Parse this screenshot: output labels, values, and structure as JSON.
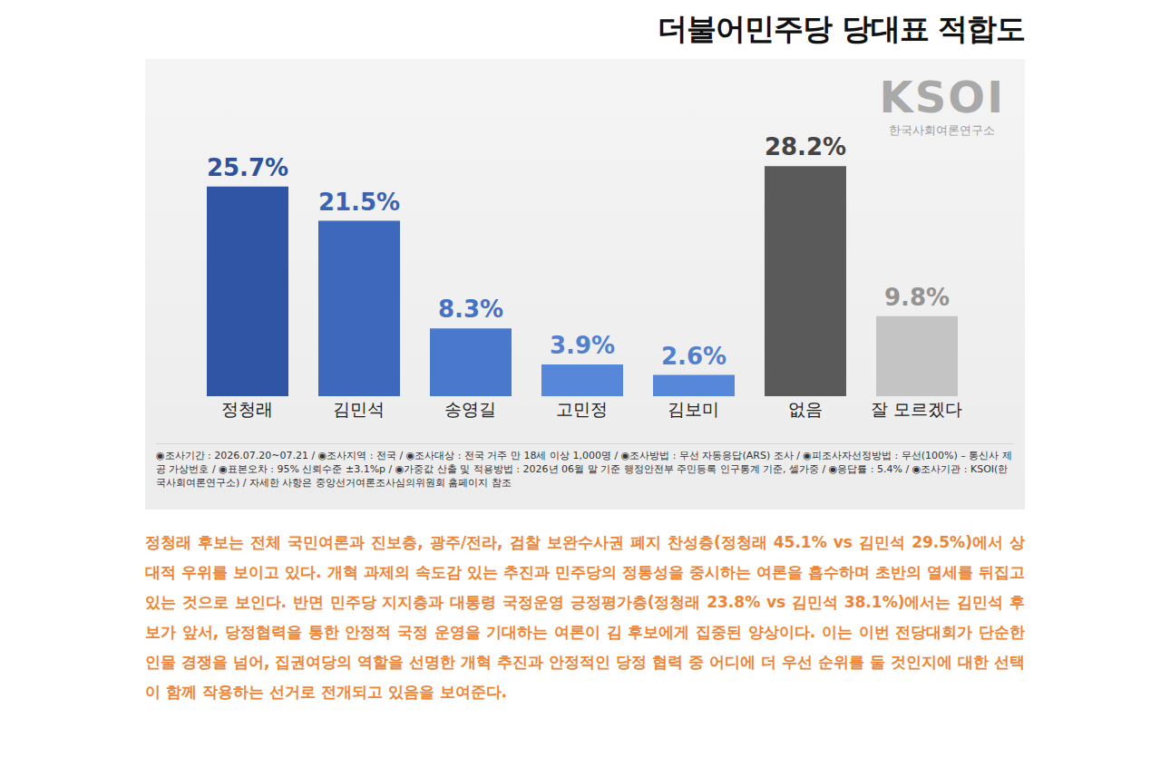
{
  "chart_data": {
    "type": "bar",
    "title": "더불어민주당 당대표 적합도",
    "logo": "KSOI",
    "logo_subtitle": "한국사회여론연구소",
    "categories": [
      "정청래",
      "김민석",
      "송영길",
      "고민정",
      "김보미",
      "없음",
      "잘 모르겠다"
    ],
    "values": [
      25.7,
      21.5,
      8.3,
      3.9,
      2.6,
      28.2,
      9.8
    ],
    "value_labels": [
      "25.7%",
      "21.5%",
      "8.3%",
      "3.9%",
      "2.6%",
      "28.2%",
      "9.8%"
    ],
    "colors": [
      "#2f55a4",
      "#3d68bb",
      "#4a78cc",
      "#5787d9",
      "#5787d9",
      "#5a5a5a",
      "#c4c4c4"
    ],
    "ylim": [
      0,
      30
    ],
    "data_labels": true,
    "tick_labels": "x",
    "grid": false,
    "footnote": "◉조사기간 : 2026.07.20~07.21 / ◉조사지역 : 전국 / ◉조사대상 : 전국 거주 만 18세 이상 1,000명 / ◉조사방법 : 무선 자동응답(ARS) 조사 / ◉피조사자선정방법 : 무선(100%) – 통신사 제공 가상번호 / ◉표본오차 : 95% 신뢰수준 ±3.1%p / ◉가중값 산출 및 적용방법 : 2026년 06월 말 기준 행정안전부 주민등록 인구통계 기준, 셀가중 / ◉응답률 : 5.4% / ◉조사기관 : KSOI(한국사회여론연구소) / 자세한 사항은 중앙선거여론조사심의위원회 홈페이지 참조",
    "commentary": "정청래 후보는 전체 국민여론과 진보층, 광주/전라, 검찰 보완수사권 폐지 찬성층(정청래 45.1% vs 김민석 29.5%)에서 상대적 우위를 보이고 있다. 개혁 과제의 속도감 있는 추진과 민주당의 정통성을 중시하는 여론을 흡수하며 초반의 열세를 뒤집고 있는 것으로 보인다. 반면 민주당 지지층과 대통령 국정운영 긍정평가층(정청래 23.8% vs 김민석 38.1%)에서는 김민석 후보가 앞서, 당정협력을 통한 안정적 국정 운영을 기대하는 여론이 김 후보에게 집중된 양상이다. 이는 이번 전당대회가 단순한 인물 경쟁을 넘어, 집권여당의 역할을 선명한 개혁 추진과 안정적인 당정 협력 중 어디에 더 우선 순위를 둘 것인지에 대한 선택이 함께 작용하는 선거로 전개되고 있음을 보여준다."
  }
}
